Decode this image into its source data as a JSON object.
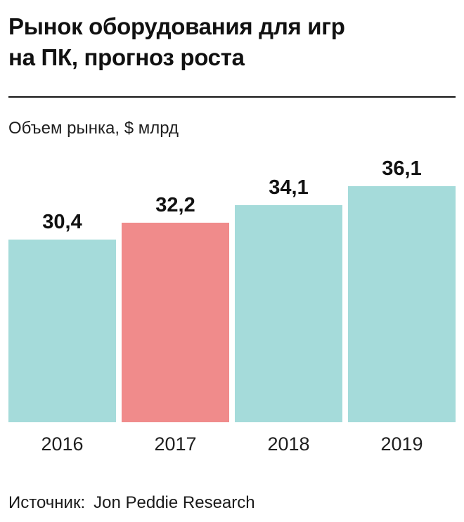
{
  "header": {
    "title_line1": "Рынок оборудования для игр",
    "title_line2": "на ПК, прогноз роста"
  },
  "chart_data": {
    "type": "bar",
    "title": "Рынок оборудования для игр на ПК, прогноз роста",
    "ylabel": "Объем рынка, $ млрд",
    "xlabel": "",
    "categories": [
      "2016",
      "2017",
      "2018",
      "2019"
    ],
    "values": [
      30.4,
      32.2,
      34.1,
      36.1
    ],
    "value_labels": [
      "30,4",
      "32,2",
      "34,1",
      "36,1"
    ],
    "ylim": [
      11,
      36.1
    ],
    "grid": false,
    "legend": false,
    "highlight_index": 1,
    "colors": {
      "default": "#A5DBDA",
      "highlight": "#F08B8B"
    }
  },
  "source": {
    "label": "Источник:",
    "text": "Jon Peddie Research"
  }
}
